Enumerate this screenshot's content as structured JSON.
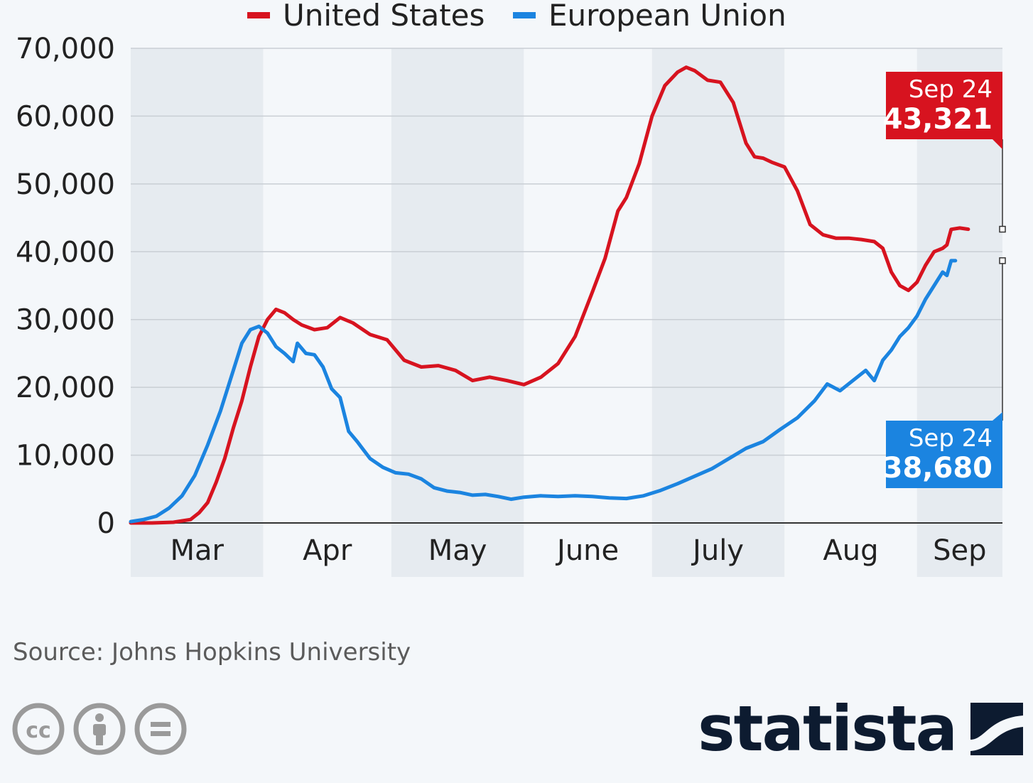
{
  "chart_data": {
    "type": "line",
    "ylim": [
      0,
      70000
    ],
    "yticks": [
      0,
      10000,
      20000,
      30000,
      40000,
      50000,
      60000,
      70000
    ],
    "ytick_labels": [
      "0",
      "10,000",
      "20,000",
      "30,000",
      "40,000",
      "50,000",
      "60,000",
      "70,000"
    ],
    "months": [
      {
        "label": "Mar",
        "start_day": 0,
        "end_day": 31
      },
      {
        "label": "Apr",
        "start_day": 31,
        "end_day": 61
      },
      {
        "label": "May",
        "start_day": 61,
        "end_day": 92
      },
      {
        "label": "June",
        "start_day": 92,
        "end_day": 122
      },
      {
        "label": "July",
        "start_day": 122,
        "end_day": 153
      },
      {
        "label": "Aug",
        "start_day": 153,
        "end_day": 184
      },
      {
        "label": "Sep",
        "start_day": 184,
        "end_day": 204
      }
    ],
    "grid": true,
    "legend_position": "top",
    "series": [
      {
        "name": "United States",
        "color": "#d7131f",
        "points": [
          [
            0,
            0
          ],
          [
            5,
            0
          ],
          [
            10,
            100
          ],
          [
            14,
            500
          ],
          [
            16,
            1500
          ],
          [
            18,
            3000
          ],
          [
            20,
            6000
          ],
          [
            22,
            9500
          ],
          [
            24,
            14000
          ],
          [
            26,
            18000
          ],
          [
            28,
            23000
          ],
          [
            30,
            27500
          ],
          [
            32,
            30000
          ],
          [
            34,
            31500
          ],
          [
            36,
            31000
          ],
          [
            38,
            30000
          ],
          [
            40,
            29200
          ],
          [
            43,
            28500
          ],
          [
            46,
            28800
          ],
          [
            49,
            30300
          ],
          [
            52,
            29500
          ],
          [
            56,
            27800
          ],
          [
            60,
            27000
          ],
          [
            64,
            24000
          ],
          [
            68,
            23000
          ],
          [
            72,
            23200
          ],
          [
            76,
            22500
          ],
          [
            80,
            21000
          ],
          [
            84,
            21500
          ],
          [
            88,
            21000
          ],
          [
            92,
            20400
          ],
          [
            96,
            21500
          ],
          [
            100,
            23500
          ],
          [
            104,
            27500
          ],
          [
            108,
            34000
          ],
          [
            111,
            39000
          ],
          [
            114,
            46000
          ],
          [
            116,
            48000
          ],
          [
            119,
            53000
          ],
          [
            122,
            60000
          ],
          [
            125,
            64500
          ],
          [
            128,
            66500
          ],
          [
            130,
            67200
          ],
          [
            132,
            66700
          ],
          [
            135,
            65300
          ],
          [
            138,
            65000
          ],
          [
            141,
            62000
          ],
          [
            144,
            56000
          ],
          [
            146,
            54000
          ],
          [
            148,
            53800
          ],
          [
            150,
            53200
          ],
          [
            153,
            52500
          ],
          [
            156,
            49000
          ],
          [
            159,
            44000
          ],
          [
            162,
            42500
          ],
          [
            165,
            42000
          ],
          [
            168,
            42000
          ],
          [
            171,
            41800
          ],
          [
            174,
            41500
          ],
          [
            176,
            40500
          ],
          [
            178,
            37000
          ],
          [
            180,
            35000
          ],
          [
            182,
            34300
          ],
          [
            184,
            35500
          ],
          [
            186,
            38000
          ],
          [
            188,
            40000
          ],
          [
            190,
            40500
          ],
          [
            191,
            41000
          ],
          [
            192,
            43300
          ],
          [
            194,
            43500
          ],
          [
            196,
            43321
          ]
        ]
      },
      {
        "name": "European Union",
        "color": "#1b84e0",
        "points": [
          [
            0,
            200
          ],
          [
            3,
            500
          ],
          [
            6,
            1000
          ],
          [
            9,
            2200
          ],
          [
            12,
            4000
          ],
          [
            15,
            7000
          ],
          [
            18,
            11500
          ],
          [
            21,
            16500
          ],
          [
            24,
            22500
          ],
          [
            26,
            26500
          ],
          [
            28,
            28500
          ],
          [
            30,
            29000
          ],
          [
            32,
            28000
          ],
          [
            34,
            26000
          ],
          [
            36,
            25000
          ],
          [
            38,
            23800
          ],
          [
            39,
            26500
          ],
          [
            41,
            25000
          ],
          [
            43,
            24800
          ],
          [
            45,
            23000
          ],
          [
            47,
            19800
          ],
          [
            49,
            18500
          ],
          [
            51,
            13500
          ],
          [
            53,
            12000
          ],
          [
            56,
            9500
          ],
          [
            59,
            8200
          ],
          [
            62,
            7400
          ],
          [
            65,
            7200
          ],
          [
            68,
            6500
          ],
          [
            71,
            5200
          ],
          [
            74,
            4700
          ],
          [
            77,
            4500
          ],
          [
            80,
            4100
          ],
          [
            83,
            4200
          ],
          [
            86,
            3900
          ],
          [
            89,
            3500
          ],
          [
            92,
            3800
          ],
          [
            96,
            4000
          ],
          [
            100,
            3900
          ],
          [
            104,
            4000
          ],
          [
            108,
            3900
          ],
          [
            112,
            3700
          ],
          [
            116,
            3600
          ],
          [
            120,
            4000
          ],
          [
            124,
            4800
          ],
          [
            128,
            5800
          ],
          [
            132,
            6900
          ],
          [
            136,
            8000
          ],
          [
            140,
            9500
          ],
          [
            144,
            11000
          ],
          [
            148,
            12000
          ],
          [
            152,
            13800
          ],
          [
            156,
            15500
          ],
          [
            160,
            18000
          ],
          [
            163,
            20500
          ],
          [
            166,
            19500
          ],
          [
            169,
            21000
          ],
          [
            172,
            22500
          ],
          [
            174,
            21000
          ],
          [
            176,
            24000
          ],
          [
            178,
            25500
          ],
          [
            180,
            27500
          ],
          [
            182,
            28800
          ],
          [
            184,
            30500
          ],
          [
            186,
            33000
          ],
          [
            188,
            35000
          ],
          [
            190,
            37000
          ],
          [
            191,
            36500
          ],
          [
            192,
            38680
          ],
          [
            193,
            38680
          ]
        ]
      }
    ],
    "annotations": [
      {
        "series": "United States",
        "date": "Sep 24",
        "value": "43,321",
        "color": "#d7131f"
      },
      {
        "series": "European Union",
        "date": "Sep 24",
        "value": "38,680",
        "color": "#1b84e0"
      }
    ]
  },
  "footer": {
    "source": "Source: Johns Hopkins University",
    "logo_text": "statista",
    "cc_icons": [
      "cc-icon",
      "by-icon",
      "nd-icon"
    ]
  }
}
